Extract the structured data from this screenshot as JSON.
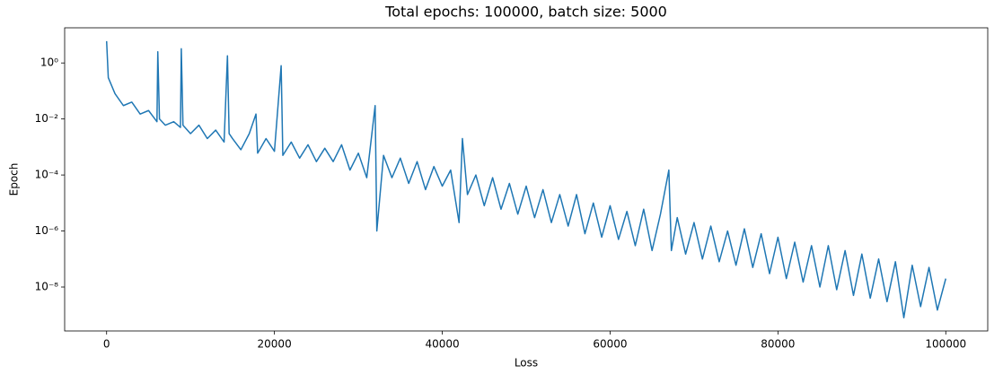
{
  "chart_data": {
    "type": "line",
    "title": "Total epochs: 100000, batch size: 5000",
    "x_label": "Loss",
    "y_label": "Epoch",
    "y_scale": "log",
    "color": "#1f77b4",
    "xlim": [
      -5000,
      105000
    ],
    "xticks": [
      0,
      20000,
      40000,
      60000,
      80000,
      100000
    ],
    "ylim": [
      2.7e-10,
      18
    ],
    "yticks": [
      {
        "value": 1e-08,
        "label": "10⁻⁸"
      },
      {
        "value": 1e-06,
        "label": "10⁻⁶"
      },
      {
        "value": 0.0001,
        "label": "10⁻⁴"
      },
      {
        "value": 0.01,
        "label": "10⁻²"
      },
      {
        "value": 1,
        "label": "10⁰"
      }
    ],
    "x": [
      0,
      200,
      1000,
      2000,
      3000,
      4000,
      5000,
      6000,
      6100,
      6300,
      7000,
      8000,
      8800,
      8900,
      9100,
      10000,
      11000,
      12000,
      13000,
      14000,
      14400,
      14600,
      15000,
      16000,
      17000,
      17800,
      18000,
      19000,
      20000,
      20800,
      21000,
      22000,
      23000,
      24000,
      25000,
      26000,
      27000,
      28000,
      29000,
      30000,
      31000,
      32000,
      32200,
      33000,
      34000,
      35000,
      36000,
      37000,
      38000,
      39000,
      40000,
      41000,
      42000,
      42400,
      43000,
      44000,
      45000,
      46000,
      47000,
      48000,
      49000,
      50000,
      51000,
      52000,
      53000,
      54000,
      55000,
      56000,
      57000,
      58000,
      59000,
      60000,
      61000,
      62000,
      63000,
      64000,
      65000,
      66000,
      67000,
      67300,
      68000,
      69000,
      70000,
      71000,
      72000,
      73000,
      74000,
      75000,
      76000,
      77000,
      78000,
      79000,
      80000,
      81000,
      82000,
      83000,
      84000,
      85000,
      86000,
      87000,
      88000,
      89000,
      90000,
      91000,
      92000,
      93000,
      94000,
      95000,
      96000,
      97000,
      98000,
      99000,
      100000
    ],
    "values": [
      6,
      0.3,
      0.08,
      0.03,
      0.04,
      0.015,
      0.02,
      0.008,
      2.5,
      0.01,
      0.006,
      0.008,
      0.005,
      3.2,
      0.006,
      0.003,
      0.006,
      0.002,
      0.004,
      0.0015,
      1.8,
      0.003,
      0.002,
      0.0008,
      0.003,
      0.015,
      0.0006,
      0.002,
      0.0007,
      0.8,
      0.0005,
      0.0015,
      0.0004,
      0.0012,
      0.0003,
      0.0009,
      0.0003,
      0.0012,
      0.00015,
      0.0006,
      8e-05,
      0.03,
      1e-06,
      0.0005,
      8e-05,
      0.0004,
      5e-05,
      0.0003,
      3e-05,
      0.0002,
      4e-05,
      0.00015,
      2e-06,
      0.002,
      2e-05,
      0.0001,
      8e-06,
      8e-05,
      6e-06,
      5e-05,
      4e-06,
      4e-05,
      3e-06,
      3e-05,
      2e-06,
      2e-05,
      1.5e-06,
      2e-05,
      8e-07,
      1e-05,
      6e-07,
      8e-06,
      5e-07,
      5e-06,
      3e-07,
      6e-06,
      2e-07,
      4e-06,
      0.00015,
      2e-07,
      3e-06,
      1.5e-07,
      2e-06,
      1e-07,
      1.5e-06,
      8e-08,
      1e-06,
      6e-08,
      1.2e-06,
      5e-08,
      8e-07,
      3e-08,
      6e-07,
      2e-08,
      4e-07,
      1.5e-08,
      3e-07,
      1e-08,
      3e-07,
      8e-09,
      2e-07,
      5e-09,
      1.5e-07,
      4e-09,
      1e-07,
      3e-09,
      8e-08,
      8e-10,
      6e-08,
      2e-09,
      5e-08,
      1.5e-09,
      2e-08
    ]
  }
}
